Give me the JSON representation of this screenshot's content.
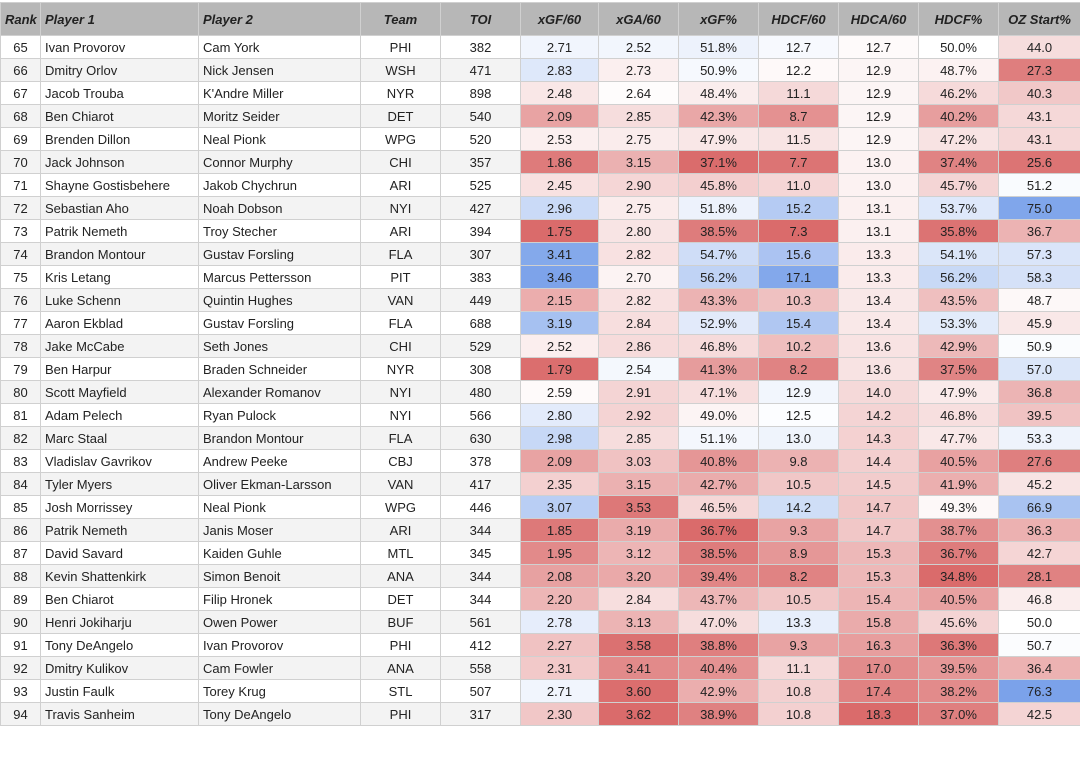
{
  "headers": [
    "Rank",
    "Player 1",
    "Player 2",
    "Team",
    "TOI",
    "xGF/60",
    "xGA/60",
    "xGF%",
    "HDCF/60",
    "HDCA/60",
    "HDCF%",
    "OZ Start%"
  ],
  "color_scale": {
    "good": "#7ba2ea",
    "neutral": "#ffffff",
    "bad": "#da6b6b"
  },
  "rows": [
    [
      "65",
      "Ivan Provorov",
      "Cam York",
      "PHI",
      "382",
      "2.71",
      "2.52",
      "51.8%",
      "12.7",
      "12.7",
      "50.0%",
      "44.0"
    ],
    [
      "66",
      "Dmitry Orlov",
      "Nick Jensen",
      "WSH",
      "471",
      "2.83",
      "2.73",
      "50.9%",
      "12.2",
      "12.9",
      "48.7%",
      "27.3"
    ],
    [
      "67",
      "Jacob Trouba",
      "K'Andre Miller",
      "NYR",
      "898",
      "2.48",
      "2.64",
      "48.4%",
      "11.1",
      "12.9",
      "46.2%",
      "40.3"
    ],
    [
      "68",
      "Ben Chiarot",
      "Moritz Seider",
      "DET",
      "540",
      "2.09",
      "2.85",
      "42.3%",
      "8.7",
      "12.9",
      "40.2%",
      "43.1"
    ],
    [
      "69",
      "Brenden Dillon",
      "Neal Pionk",
      "WPG",
      "520",
      "2.53",
      "2.75",
      "47.9%",
      "11.5",
      "12.9",
      "47.2%",
      "43.1"
    ],
    [
      "70",
      "Jack Johnson",
      "Connor Murphy",
      "CHI",
      "357",
      "1.86",
      "3.15",
      "37.1%",
      "7.7",
      "13.0",
      "37.4%",
      "25.6"
    ],
    [
      "71",
      "Shayne Gostisbehere",
      "Jakob Chychrun",
      "ARI",
      "525",
      "2.45",
      "2.90",
      "45.8%",
      "11.0",
      "13.0",
      "45.7%",
      "51.2"
    ],
    [
      "72",
      "Sebastian Aho",
      "Noah Dobson",
      "NYI",
      "427",
      "2.96",
      "2.75",
      "51.8%",
      "15.2",
      "13.1",
      "53.7%",
      "75.0"
    ],
    [
      "73",
      "Patrik Nemeth",
      "Troy Stecher",
      "ARI",
      "394",
      "1.75",
      "2.80",
      "38.5%",
      "7.3",
      "13.1",
      "35.8%",
      "36.7"
    ],
    [
      "74",
      "Brandon Montour",
      "Gustav Forsling",
      "FLA",
      "307",
      "3.41",
      "2.82",
      "54.7%",
      "15.6",
      "13.3",
      "54.1%",
      "57.3"
    ],
    [
      "75",
      "Kris Letang",
      "Marcus Pettersson",
      "PIT",
      "383",
      "3.46",
      "2.70",
      "56.2%",
      "17.1",
      "13.3",
      "56.2%",
      "58.3"
    ],
    [
      "76",
      "Luke Schenn",
      "Quintin Hughes",
      "VAN",
      "449",
      "2.15",
      "2.82",
      "43.3%",
      "10.3",
      "13.4",
      "43.5%",
      "48.7"
    ],
    [
      "77",
      "Aaron Ekblad",
      "Gustav Forsling",
      "FLA",
      "688",
      "3.19",
      "2.84",
      "52.9%",
      "15.4",
      "13.4",
      "53.3%",
      "45.9"
    ],
    [
      "78",
      "Jake McCabe",
      "Seth Jones",
      "CHI",
      "529",
      "2.52",
      "2.86",
      "46.8%",
      "10.2",
      "13.6",
      "42.9%",
      "50.9"
    ],
    [
      "79",
      "Ben Harpur",
      "Braden Schneider",
      "NYR",
      "308",
      "1.79",
      "2.54",
      "41.3%",
      "8.2",
      "13.6",
      "37.5%",
      "57.0"
    ],
    [
      "80",
      "Scott Mayfield",
      "Alexander Romanov",
      "NYI",
      "480",
      "2.59",
      "2.91",
      "47.1%",
      "12.9",
      "14.0",
      "47.9%",
      "36.8"
    ],
    [
      "81",
      "Adam Pelech",
      "Ryan Pulock",
      "NYI",
      "566",
      "2.80",
      "2.92",
      "49.0%",
      "12.5",
      "14.2",
      "46.8%",
      "39.5"
    ],
    [
      "82",
      "Marc Staal",
      "Brandon Montour",
      "FLA",
      "630",
      "2.98",
      "2.85",
      "51.1%",
      "13.0",
      "14.3",
      "47.7%",
      "53.3"
    ],
    [
      "83",
      "Vladislav Gavrikov",
      "Andrew Peeke",
      "CBJ",
      "378",
      "2.09",
      "3.03",
      "40.8%",
      "9.8",
      "14.4",
      "40.5%",
      "27.6"
    ],
    [
      "84",
      "Tyler Myers",
      "Oliver Ekman-Larsson",
      "VAN",
      "417",
      "2.35",
      "3.15",
      "42.7%",
      "10.5",
      "14.5",
      "41.9%",
      "45.2"
    ],
    [
      "85",
      "Josh Morrissey",
      "Neal Pionk",
      "WPG",
      "446",
      "3.07",
      "3.53",
      "46.5%",
      "14.2",
      "14.7",
      "49.3%",
      "66.9"
    ],
    [
      "86",
      "Patrik Nemeth",
      "Janis Moser",
      "ARI",
      "344",
      "1.85",
      "3.19",
      "36.7%",
      "9.3",
      "14.7",
      "38.7%",
      "36.3"
    ],
    [
      "87",
      "David Savard",
      "Kaiden Guhle",
      "MTL",
      "345",
      "1.95",
      "3.12",
      "38.5%",
      "8.9",
      "15.3",
      "36.7%",
      "42.7"
    ],
    [
      "88",
      "Kevin Shattenkirk",
      "Simon Benoit",
      "ANA",
      "344",
      "2.08",
      "3.20",
      "39.4%",
      "8.2",
      "15.3",
      "34.8%",
      "28.1"
    ],
    [
      "89",
      "Ben Chiarot",
      "Filip Hronek",
      "DET",
      "344",
      "2.20",
      "2.84",
      "43.7%",
      "10.5",
      "15.4",
      "40.5%",
      "46.8"
    ],
    [
      "90",
      "Henri Jokiharju",
      "Owen Power",
      "BUF",
      "561",
      "2.78",
      "3.13",
      "47.0%",
      "13.3",
      "15.8",
      "45.6%",
      "50.0"
    ],
    [
      "91",
      "Tony DeAngelo",
      "Ivan Provorov",
      "PHI",
      "412",
      "2.27",
      "3.58",
      "38.8%",
      "9.3",
      "16.3",
      "36.3%",
      "50.7"
    ],
    [
      "92",
      "Dmitry Kulikov",
      "Cam Fowler",
      "ANA",
      "558",
      "2.31",
      "3.41",
      "40.4%",
      "11.1",
      "17.0",
      "39.5%",
      "36.4"
    ],
    [
      "93",
      "Justin Faulk",
      "Torey Krug",
      "STL",
      "507",
      "2.71",
      "3.60",
      "42.9%",
      "10.8",
      "17.4",
      "38.2%",
      "76.3"
    ],
    [
      "94",
      "Travis Sanheim",
      "Tony DeAngelo",
      "PHI",
      "317",
      "2.30",
      "3.62",
      "38.9%",
      "10.8",
      "18.3",
      "37.0%",
      "42.5"
    ]
  ]
}
